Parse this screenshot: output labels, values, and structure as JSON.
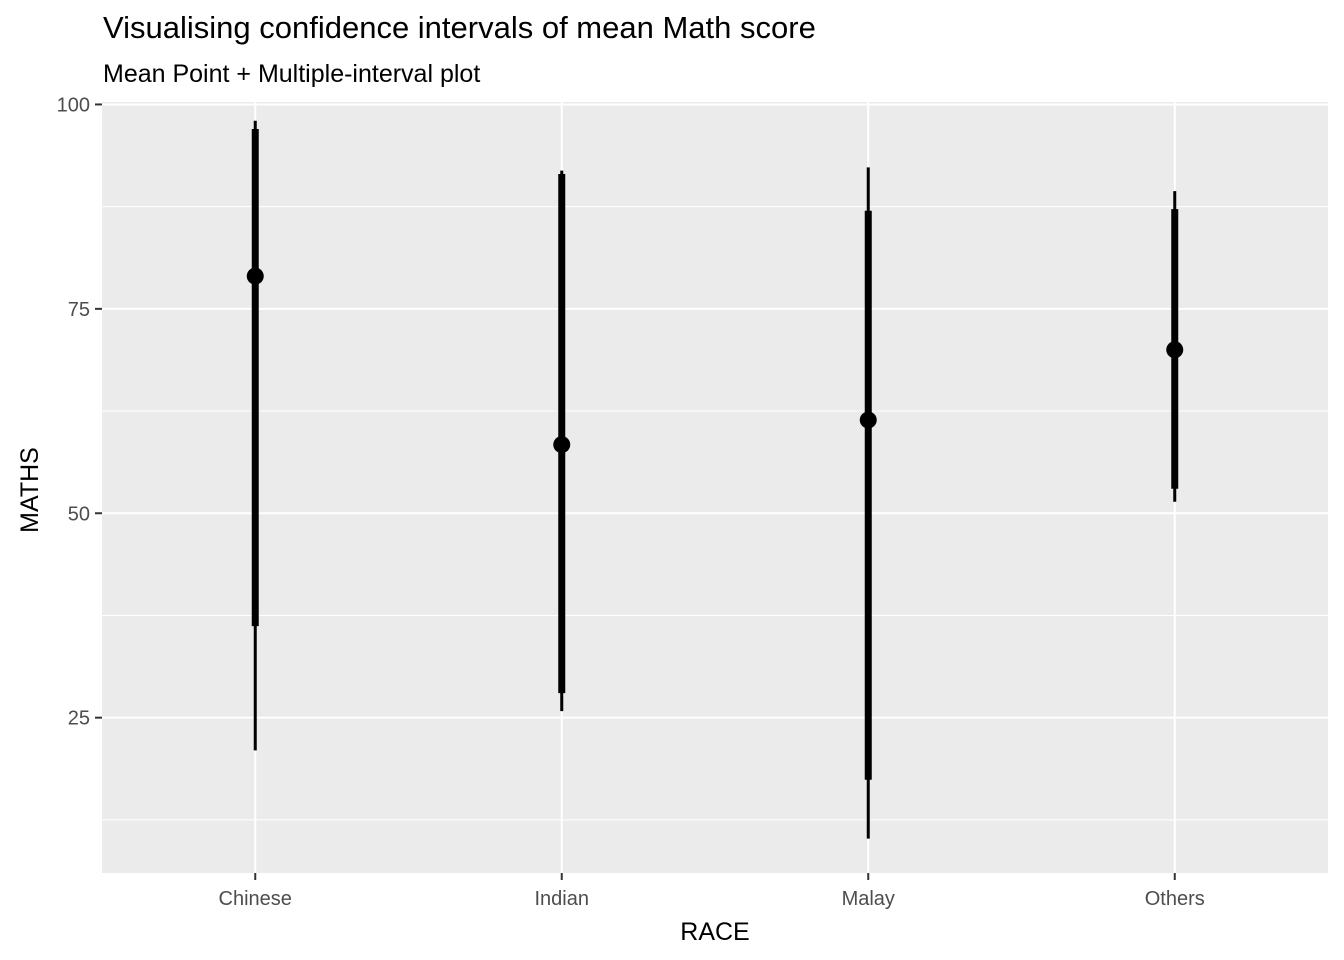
{
  "chart_data": {
    "type": "interval",
    "title": "Visualising confidence intervals of mean Math score",
    "subtitle": "Mean Point + Multiple-interval plot",
    "xlabel": "RACE",
    "ylabel": "MATHS",
    "categories": [
      "Chinese",
      "Indian",
      "Malay",
      "Others"
    ],
    "ylim": [
      6,
      100.3
    ],
    "yticks": [
      25,
      50,
      75,
      100
    ],
    "ytick_labels": [
      "25",
      "50",
      "75",
      "100"
    ],
    "grid": true,
    "series": [
      {
        "category": "Chinese",
        "mean": 79.0,
        "inner": [
          36.2,
          97.0
        ],
        "outer": [
          21.0,
          98.0
        ]
      },
      {
        "category": "Indian",
        "mean": 58.4,
        "inner": [
          28.0,
          91.5
        ],
        "outer": [
          25.8,
          91.9
        ]
      },
      {
        "category": "Malay",
        "mean": 61.4,
        "inner": [
          17.4,
          87.0
        ],
        "outer": [
          10.2,
          92.3
        ]
      },
      {
        "category": "Others",
        "mean": 70.0,
        "inner": [
          53.0,
          87.2
        ],
        "outer": [
          51.4,
          89.4
        ]
      }
    ],
    "colors": {
      "panel": "#EBEBEB",
      "grid": "#FFFFFF",
      "mark": "#000000",
      "tick": "#333333"
    }
  }
}
